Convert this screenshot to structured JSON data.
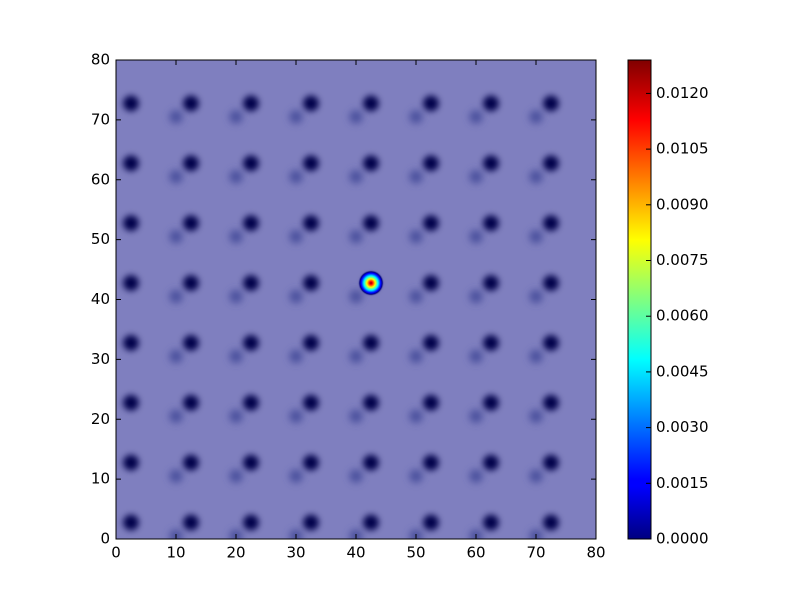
{
  "chart_data": {
    "type": "heatmap",
    "xlim": [
      0,
      80
    ],
    "ylim": [
      0,
      80
    ],
    "xticks": [
      0,
      10,
      20,
      30,
      40,
      50,
      60,
      70,
      80
    ],
    "yticks": [
      0,
      10,
      20,
      30,
      40,
      50,
      60,
      70,
      80
    ],
    "background_color": "#7f7fbf",
    "spot_color": "#00004a",
    "satellite_color": "#4a4f9c",
    "spot_x": [
      2.5,
      12.5,
      22.5,
      32.5,
      42.5,
      52.5,
      62.5,
      72.5
    ],
    "spot_y": [
      2.75,
      12.75,
      22.75,
      32.75,
      42.75,
      52.75,
      62.75,
      72.75
    ],
    "satellite_x": [
      10,
      20,
      30,
      40,
      50,
      60,
      70
    ],
    "satellite_y": [
      0.5,
      10.5,
      20.5,
      30.5,
      40.5,
      50.5,
      60.5,
      70.5
    ],
    "peak": {
      "x": 42.5,
      "y": 42.75,
      "value": 0.0129
    },
    "colormap": "jet",
    "clim": [
      0,
      0.0129
    ],
    "cticks": [
      {
        "value": 0,
        "label": "0.0000"
      },
      {
        "value": 0.0015,
        "label": "0.0015"
      },
      {
        "value": 0.003,
        "label": "0.0030"
      },
      {
        "value": 0.0045,
        "label": "0.0045"
      },
      {
        "value": 0.006,
        "label": "0.0060"
      },
      {
        "value": 0.0075,
        "label": "0.0075"
      },
      {
        "value": 0.009,
        "label": "0.0090"
      },
      {
        "value": 0.0105,
        "label": "0.0105"
      },
      {
        "value": 0.012,
        "label": "0.0120"
      }
    ]
  }
}
